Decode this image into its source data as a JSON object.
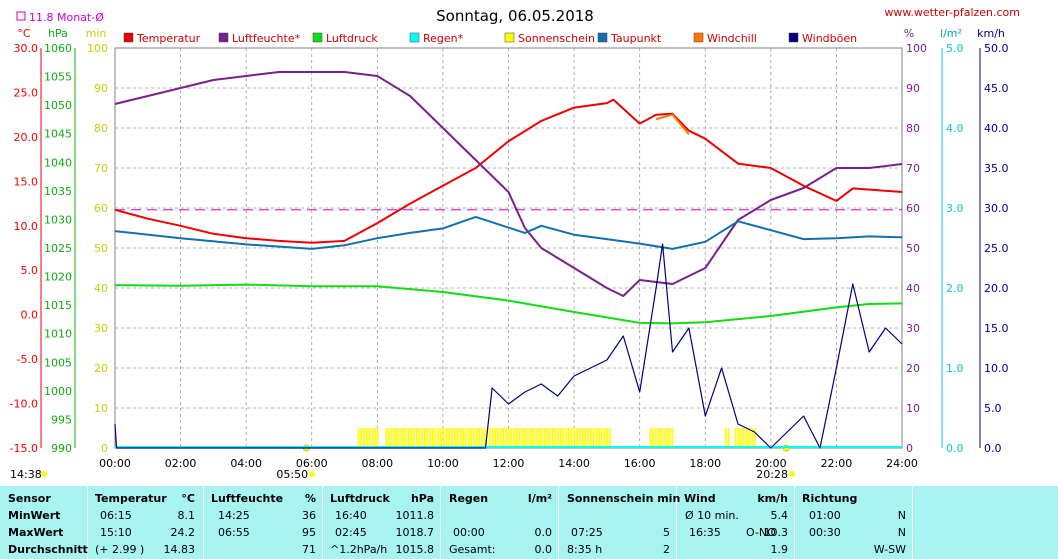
{
  "header": {
    "title": "Sonntag, 06.05.2018",
    "url": "www.wetter-pfalzen.com",
    "monthly_avg": "11.8 Monat-Ø",
    "units_left": [
      "°C",
      "hPa",
      "min"
    ],
    "units_right": [
      "%",
      "l/m²",
      "km/h"
    ]
  },
  "legend": [
    {
      "name": "Temperatur",
      "color": "#ee0000"
    },
    {
      "name": "Luftfeuchte*",
      "color": "#7a1f8c"
    },
    {
      "name": "Luftdruck",
      "color": "#11dd11"
    },
    {
      "name": "Regen*",
      "color": "#00ffff"
    },
    {
      "name": "Sonnenschein",
      "color": "#ffff00"
    },
    {
      "name": "Taupunkt",
      "color": "#1070b0"
    },
    {
      "name": "Windchill",
      "color": "#ff7700"
    },
    {
      "name": "Windböen",
      "color": "#000080"
    }
  ],
  "chart_data": {
    "type": "line",
    "x_ticks": [
      "00:00",
      "02:00",
      "04:00",
      "06:00",
      "08:00",
      "10:00",
      "12:00",
      "14:00",
      "16:00",
      "18:00",
      "20:00",
      "22:00",
      "24:00"
    ],
    "axes": {
      "temperature": {
        "unit": "°C",
        "range": [
          -15,
          30
        ],
        "ticks": [
          "30.0",
          "25.0",
          "20.0",
          "15.0",
          "10.0",
          "5.0",
          "0.0",
          "-5.0",
          "-10.0",
          "-15.0"
        ],
        "color": "#ee0000"
      },
      "pressure": {
        "unit": "hPa",
        "range": [
          990,
          1060
        ],
        "ticks": [
          "1060",
          "1055",
          "1050",
          "1045",
          "1040",
          "1035",
          "1030",
          "1025",
          "1020",
          "1015",
          "1010",
          "1005",
          "1000",
          "995",
          "990"
        ],
        "color": "#11aa11"
      },
      "sunshine": {
        "unit": "min",
        "range": [
          0,
          100
        ],
        "ticks": [
          "100",
          "90",
          "80",
          "70",
          "60",
          "50",
          "40",
          "30",
          "20",
          "10",
          "0"
        ],
        "color": "#cccc00"
      },
      "humidity": {
        "unit": "%",
        "range": [
          0,
          100
        ],
        "ticks": [
          "100",
          "90",
          "80",
          "70",
          "60",
          "50",
          "40",
          "30",
          "20",
          "10",
          "0"
        ],
        "color": "#7a1f8c"
      },
      "rain": {
        "unit": "l/m²",
        "range": [
          0,
          5
        ],
        "ticks": [
          "5.0",
          "4.0",
          "3.0",
          "2.0",
          "1.0",
          "0.0"
        ],
        "color": "#00cccc"
      },
      "wind": {
        "unit": "km/h",
        "range": [
          0,
          50
        ],
        "ticks": [
          "50.0",
          "45.0",
          "40.0",
          "35.0",
          "30.0",
          "25.0",
          "20.0",
          "15.0",
          "10.0",
          "5.0",
          "0.0"
        ],
        "color": "#000080"
      }
    },
    "monthly_avg_temperature": 11.8,
    "sunrise": "05:50",
    "sunset": "20:28",
    "corner_time": "14:38",
    "series": [
      {
        "name": "Temperatur",
        "axis": "temperature",
        "color": "#ee0000",
        "points": [
          [
            0,
            11.8
          ],
          [
            1,
            10.8
          ],
          [
            2,
            10.0
          ],
          [
            3,
            9.1
          ],
          [
            4,
            8.6
          ],
          [
            5,
            8.3
          ],
          [
            6,
            8.1
          ],
          [
            7,
            8.3
          ],
          [
            7.5,
            9.3
          ],
          [
            8,
            10.3
          ],
          [
            9,
            12.5
          ],
          [
            10,
            14.5
          ],
          [
            11,
            16.5
          ],
          [
            12,
            19.5
          ],
          [
            13,
            21.8
          ],
          [
            14,
            23.3
          ],
          [
            15,
            23.8
          ],
          [
            15.2,
            24.2
          ],
          [
            16,
            21.5
          ],
          [
            16.5,
            22.5
          ],
          [
            17,
            22.6
          ],
          [
            17.5,
            20.7
          ],
          [
            18,
            19.8
          ],
          [
            19,
            17.0
          ],
          [
            20,
            16.5
          ],
          [
            21,
            14.5
          ],
          [
            22,
            12.8
          ],
          [
            22.5,
            14.2
          ],
          [
            24,
            13.8
          ]
        ]
      },
      {
        "name": "Luftfeuchte*",
        "axis": "humidity",
        "color": "#7a1f8c",
        "points": [
          [
            0,
            86
          ],
          [
            1,
            88
          ],
          [
            2,
            90
          ],
          [
            3,
            92
          ],
          [
            4,
            93
          ],
          [
            5,
            94
          ],
          [
            6,
            94
          ],
          [
            7,
            94
          ],
          [
            8,
            93
          ],
          [
            9,
            88
          ],
          [
            10,
            80
          ],
          [
            11,
            72
          ],
          [
            12,
            64
          ],
          [
            12.5,
            55
          ],
          [
            13,
            50
          ],
          [
            14,
            45
          ],
          [
            15,
            40
          ],
          [
            15.5,
            38
          ],
          [
            16,
            42
          ],
          [
            17,
            41
          ],
          [
            18,
            45
          ],
          [
            19,
            57
          ],
          [
            20,
            62
          ],
          [
            21,
            65
          ],
          [
            22,
            70
          ],
          [
            23,
            70
          ],
          [
            24,
            71
          ]
        ]
      },
      {
        "name": "Luftdruck",
        "axis": "pressure",
        "color": "#11dd11",
        "points": [
          [
            0,
            1018.5
          ],
          [
            2,
            1018.4
          ],
          [
            4,
            1018.6
          ],
          [
            6,
            1018.3
          ],
          [
            8,
            1018.3
          ],
          [
            10,
            1017.3
          ],
          [
            12,
            1015.8
          ],
          [
            14,
            1013.8
          ],
          [
            16,
            1011.9
          ],
          [
            17,
            1011.8
          ],
          [
            18,
            1012.0
          ],
          [
            20,
            1013.1
          ],
          [
            22,
            1014.6
          ],
          [
            23,
            1015.2
          ],
          [
            24,
            1015.3
          ]
        ]
      },
      {
        "name": "Taupunkt",
        "axis": "temperature",
        "color": "#1070b0",
        "points": [
          [
            0,
            9.4
          ],
          [
            2,
            8.6
          ],
          [
            4,
            7.9
          ],
          [
            6,
            7.4
          ],
          [
            7,
            7.8
          ],
          [
            8,
            8.6
          ],
          [
            9,
            9.2
          ],
          [
            10,
            9.7
          ],
          [
            11,
            11.0
          ],
          [
            12,
            9.8
          ],
          [
            12.5,
            9.2
          ],
          [
            13,
            10.0
          ],
          [
            14,
            9.0
          ],
          [
            15,
            8.5
          ],
          [
            16,
            8.0
          ],
          [
            17,
            7.4
          ],
          [
            18,
            8.2
          ],
          [
            19,
            10.5
          ],
          [
            20,
            9.5
          ],
          [
            21,
            8.5
          ],
          [
            22,
            8.6
          ],
          [
            23,
            8.8
          ],
          [
            24,
            8.7
          ]
        ]
      },
      {
        "name": "Windchill",
        "axis": "temperature",
        "color": "#ff7700",
        "points": [
          [
            16.5,
            22.0
          ],
          [
            17,
            22.5
          ],
          [
            17.5,
            20.3
          ]
        ]
      },
      {
        "name": "Windböen",
        "axis": "wind",
        "color": "#000080",
        "points": [
          [
            0,
            3
          ],
          [
            0.05,
            0
          ],
          [
            11.3,
            0
          ],
          [
            11.5,
            7.5
          ],
          [
            12,
            5.5
          ],
          [
            12.5,
            7
          ],
          [
            13,
            8
          ],
          [
            13.5,
            6.5
          ],
          [
            14,
            9
          ],
          [
            14.5,
            10
          ],
          [
            15,
            11
          ],
          [
            15.5,
            14
          ],
          [
            16,
            7
          ],
          [
            16.5,
            20
          ],
          [
            16.7,
            25.5
          ],
          [
            17,
            12
          ],
          [
            17.5,
            15
          ],
          [
            18,
            4
          ],
          [
            18.5,
            10
          ],
          [
            19,
            3
          ],
          [
            19.5,
            2
          ],
          [
            20,
            0
          ],
          [
            21,
            4
          ],
          [
            21.5,
            0
          ],
          [
            22,
            10
          ],
          [
            22.5,
            20.5
          ],
          [
            23,
            12
          ],
          [
            23.5,
            15
          ],
          [
            24,
            13
          ]
        ]
      }
    ],
    "sunshine_bars": [
      [
        7.4,
        8.0
      ],
      [
        8.25,
        11.3
      ],
      [
        11.4,
        15.1
      ],
      [
        16.3,
        17.0
      ],
      [
        18.6,
        18.7
      ],
      [
        18.9,
        19.5
      ]
    ],
    "sunshine_value": 5
  },
  "stats": {
    "headers": {
      "sensor": "Sensor",
      "temp": "Temperatur",
      "temp_unit": "°C",
      "hum": "Luftfeuchte",
      "hum_unit": "%",
      "press": "Luftdruck",
      "press_unit": "hPa",
      "rain": "Regen",
      "rain_unit": "l/m²",
      "sun": "Sonnenschein min",
      "wind": "Wind",
      "wind_unit": "km/h",
      "dir": "Richtung"
    },
    "rows": [
      {
        "label": "MinWert",
        "temp_time": "06:15",
        "temp_val": "8.1",
        "hum_time": "14:25",
        "hum_val": "36",
        "press_time": "16:40",
        "press_val": "1011.8",
        "rain_time": "",
        "rain_val": "",
        "sun_time": "",
        "sun_val": "",
        "wind_time": "Ø 10 min.",
        "wind_dir": "",
        "wind_val": "5.4",
        "dir_time": "01:00",
        "dir_val": "N"
      },
      {
        "label": "MaxWert",
        "temp_time": "15:10",
        "temp_val": "24.2",
        "hum_time": "06:55",
        "hum_val": "95",
        "press_time": "02:45",
        "press_val": "1018.7",
        "rain_time": "00:00",
        "rain_val": "0.0",
        "sun_time": "07:25",
        "sun_val": "5",
        "wind_time": "16:35",
        "wind_dir": "O-NO",
        "wind_val": "10.3",
        "dir_time": "00:30",
        "dir_val": "N"
      },
      {
        "label": "Durchschnitt",
        "temp_time": "(+ 2.99 )",
        "temp_val": "14.83",
        "hum_time": "",
        "hum_val": "71",
        "press_time": "^1.2hPa/h",
        "press_val": "1015.8",
        "rain_time": "Gesamt:",
        "rain_val": "0.0",
        "sun_time": "8:35 h",
        "sun_val": "2",
        "wind_time": "",
        "wind_dir": "",
        "wind_val": "1.9",
        "dir_time": "",
        "dir_val": "W-SW"
      }
    ]
  }
}
